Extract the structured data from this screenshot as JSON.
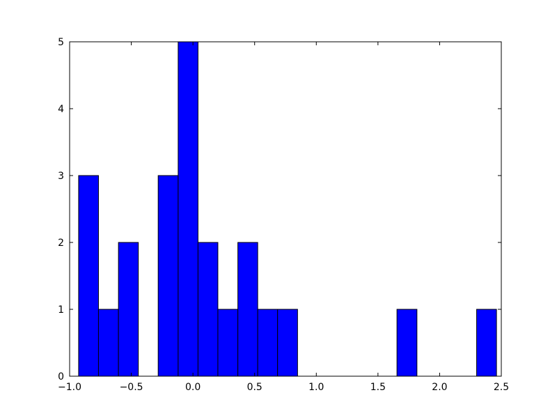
{
  "chart_data": {
    "type": "histogram",
    "bins": [
      -0.927,
      -0.766,
      -0.604,
      -0.443,
      -0.282,
      -0.12,
      0.041,
      0.202,
      0.364,
      0.525,
      0.686,
      0.848,
      1.009,
      1.17,
      1.332,
      1.493,
      1.654,
      1.816,
      1.977,
      2.138,
      2.3,
      2.461
    ],
    "values": [
      3,
      1,
      2,
      0,
      3,
      5,
      2,
      1,
      2,
      1,
      1,
      0,
      0,
      0,
      0,
      0,
      1,
      0,
      0,
      0,
      1
    ],
    "color": "#0000ff",
    "xlim": [
      -1.0,
      2.5
    ],
    "xticks": [
      {
        "value": -1.0,
        "label": "−1.0"
      },
      {
        "value": -0.5,
        "label": "−0.5"
      },
      {
        "value": 0.0,
        "label": "0.0"
      },
      0.5,
      {
        "value": 1.0,
        "label": "1.0"
      },
      1.5,
      {
        "value": 2.0,
        "label": "2.0"
      },
      2.5
    ],
    "ylim": [
      0,
      5
    ],
    "yticks": [
      0,
      1,
      2,
      3,
      4,
      5
    ],
    "grid": false
  }
}
